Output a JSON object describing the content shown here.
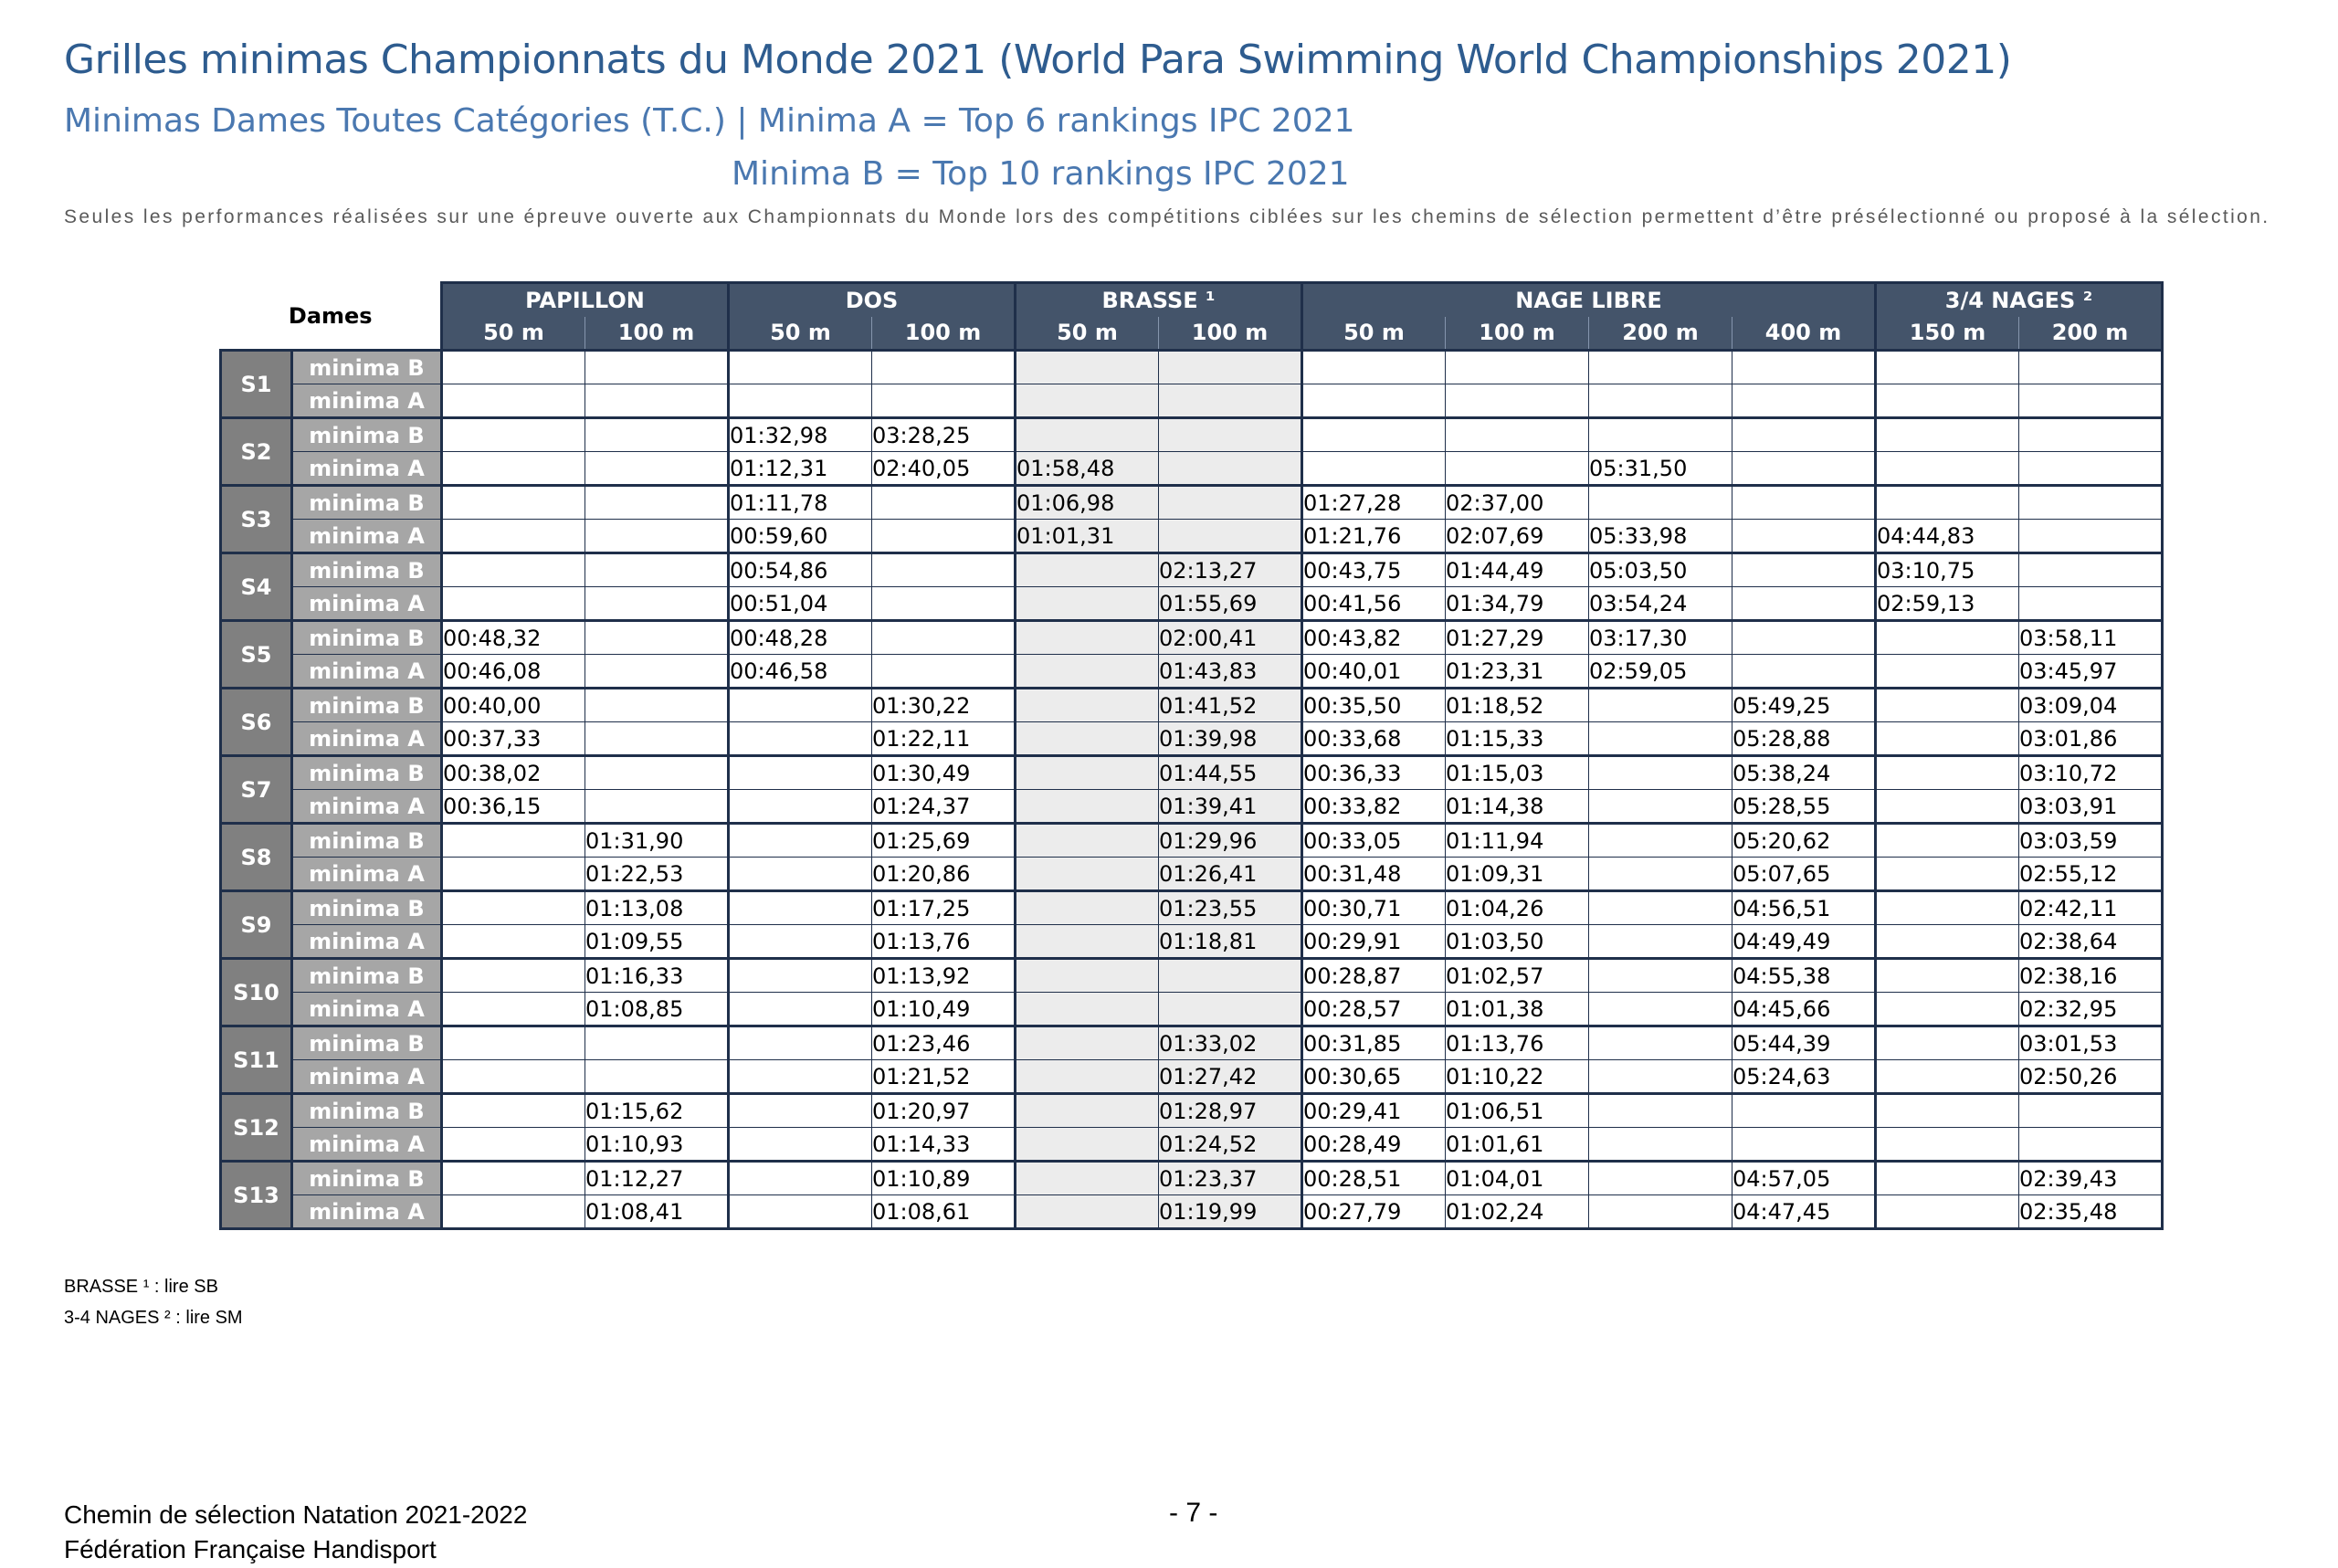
{
  "title": "Grilles minimas Championnats du Monde 2021 (World Para Swimming World Championships 2021)",
  "subtitle_line1": "Minimas Dames Toutes Catégories (T.C.) |   Minima A = Top 6 rankings IPC 2021",
  "subtitle_line2": "Minima B = Top 10 rankings IPC 2021",
  "note": "Seules les performances réalisées sur une épreuve ouverte aux Championnats du Monde lors des compétitions ciblées sur les chemins de sélection permettent d’être présélectionné ou proposé à la sélection.",
  "table": {
    "corner_label": "Dames",
    "groups": [
      {
        "label": "PAPILLON",
        "span": 2
      },
      {
        "label": "DOS",
        "span": 2
      },
      {
        "label": "BRASSE ¹",
        "span": 2
      },
      {
        "label": "NAGE LIBRE",
        "span": 4
      },
      {
        "label": "3/4 NAGES ²",
        "span": 2
      }
    ],
    "distances": [
      "50 m",
      "100 m",
      "50 m",
      "100 m",
      "50 m",
      "100 m",
      "50 m",
      "100 m",
      "200 m",
      "400 m",
      "150 m",
      "200 m"
    ],
    "level_labels": {
      "b": "minima B",
      "a": "minima A"
    },
    "classes": [
      {
        "cls": "S1",
        "b": [
          "",
          "",
          "",
          "",
          "",
          "",
          "",
          "",
          "",
          "",
          "",
          ""
        ],
        "a": [
          "",
          "",
          "",
          "",
          "",
          "",
          "",
          "",
          "",
          "",
          "",
          ""
        ]
      },
      {
        "cls": "S2",
        "b": [
          "",
          "",
          "01:32,98",
          "03:28,25",
          "",
          "",
          "",
          "",
          "",
          "",
          "",
          ""
        ],
        "a": [
          "",
          "",
          "01:12,31",
          "02:40,05",
          "01:58,48",
          "",
          "",
          "",
          "05:31,50",
          "",
          "",
          ""
        ]
      },
      {
        "cls": "S3",
        "b": [
          "",
          "",
          "01:11,78",
          "",
          "01:06,98",
          "",
          "01:27,28",
          "02:37,00",
          "",
          "",
          "",
          ""
        ],
        "a": [
          "",
          "",
          "00:59,60",
          "",
          "01:01,31",
          "",
          "01:21,76",
          "02:07,69",
          "05:33,98",
          "",
          "04:44,83",
          ""
        ]
      },
      {
        "cls": "S4",
        "b": [
          "",
          "",
          "00:54,86",
          "",
          "",
          "02:13,27",
          "00:43,75",
          "01:44,49",
          "05:03,50",
          "",
          "03:10,75",
          ""
        ],
        "a": [
          "",
          "",
          "00:51,04",
          "",
          "",
          "01:55,69",
          "00:41,56",
          "01:34,79",
          "03:54,24",
          "",
          "02:59,13",
          ""
        ]
      },
      {
        "cls": "S5",
        "b": [
          "00:48,32",
          "",
          "00:48,28",
          "",
          "",
          "02:00,41",
          "00:43,82",
          "01:27,29",
          "03:17,30",
          "",
          "",
          "03:58,11"
        ],
        "a": [
          "00:46,08",
          "",
          "00:46,58",
          "",
          "",
          "01:43,83",
          "00:40,01",
          "01:23,31",
          "02:59,05",
          "",
          "",
          "03:45,97"
        ]
      },
      {
        "cls": "S6",
        "b": [
          "00:40,00",
          "",
          "",
          "01:30,22",
          "",
          "01:41,52",
          "00:35,50",
          "01:18,52",
          "",
          "05:49,25",
          "",
          "03:09,04"
        ],
        "a": [
          "00:37,33",
          "",
          "",
          "01:22,11",
          "",
          "01:39,98",
          "00:33,68",
          "01:15,33",
          "",
          "05:28,88",
          "",
          "03:01,86"
        ]
      },
      {
        "cls": "S7",
        "b": [
          "00:38,02",
          "",
          "",
          "01:30,49",
          "",
          "01:44,55",
          "00:36,33",
          "01:15,03",
          "",
          "05:38,24",
          "",
          "03:10,72"
        ],
        "a": [
          "00:36,15",
          "",
          "",
          "01:24,37",
          "",
          "01:39,41",
          "00:33,82",
          "01:14,38",
          "",
          "05:28,55",
          "",
          "03:03,91"
        ]
      },
      {
        "cls": "S8",
        "b": [
          "",
          "01:31,90",
          "",
          "01:25,69",
          "",
          "01:29,96",
          "00:33,05",
          "01:11,94",
          "",
          "05:20,62",
          "",
          "03:03,59"
        ],
        "a": [
          "",
          "01:22,53",
          "",
          "01:20,86",
          "",
          "01:26,41",
          "00:31,48",
          "01:09,31",
          "",
          "05:07,65",
          "",
          "02:55,12"
        ]
      },
      {
        "cls": "S9",
        "b": [
          "",
          "01:13,08",
          "",
          "01:17,25",
          "",
          "01:23,55",
          "00:30,71",
          "01:04,26",
          "",
          "04:56,51",
          "",
          "02:42,11"
        ],
        "a": [
          "",
          "01:09,55",
          "",
          "01:13,76",
          "",
          "01:18,81",
          "00:29,91",
          "01:03,50",
          "",
          "04:49,49",
          "",
          "02:38,64"
        ]
      },
      {
        "cls": "S10",
        "b": [
          "",
          "01:16,33",
          "",
          "01:13,92",
          "",
          "",
          "00:28,87",
          "01:02,57",
          "",
          "04:55,38",
          "",
          "02:38,16"
        ],
        "a": [
          "",
          "01:08,85",
          "",
          "01:10,49",
          "",
          "",
          "00:28,57",
          "01:01,38",
          "",
          "04:45,66",
          "",
          "02:32,95"
        ]
      },
      {
        "cls": "S11",
        "b": [
          "",
          "",
          "",
          "01:23,46",
          "",
          "01:33,02",
          "00:31,85",
          "01:13,76",
          "",
          "05:44,39",
          "",
          "03:01,53"
        ],
        "a": [
          "",
          "",
          "",
          "01:21,52",
          "",
          "01:27,42",
          "00:30,65",
          "01:10,22",
          "",
          "05:24,63",
          "",
          "02:50,26"
        ]
      },
      {
        "cls": "S12",
        "b": [
          "",
          "01:15,62",
          "",
          "01:20,97",
          "",
          "01:28,97",
          "00:29,41",
          "01:06,51",
          "",
          "",
          "",
          ""
        ],
        "a": [
          "",
          "01:10,93",
          "",
          "01:14,33",
          "",
          "01:24,52",
          "00:28,49",
          "01:01,61",
          "",
          "",
          "",
          ""
        ]
      },
      {
        "cls": "S13",
        "b": [
          "",
          "01:12,27",
          "",
          "01:10,89",
          "",
          "01:23,37",
          "00:28,51",
          "01:04,01",
          "",
          "04:57,05",
          "",
          "02:39,43"
        ],
        "a": [
          "",
          "01:08,41",
          "",
          "01:08,61",
          "",
          "01:19,99",
          "00:27,79",
          "01:02,24",
          "",
          "04:47,45",
          "",
          "02:35,48"
        ]
      }
    ]
  },
  "footnotes": [
    "BRASSE ¹ : lire SB",
    "3-4 NAGES ² : lire SM"
  ],
  "footer": {
    "line1": "Chemin de sélection Natation 2021-2022",
    "line2": "Fédération Française Handisport",
    "page": "- 7 -"
  }
}
